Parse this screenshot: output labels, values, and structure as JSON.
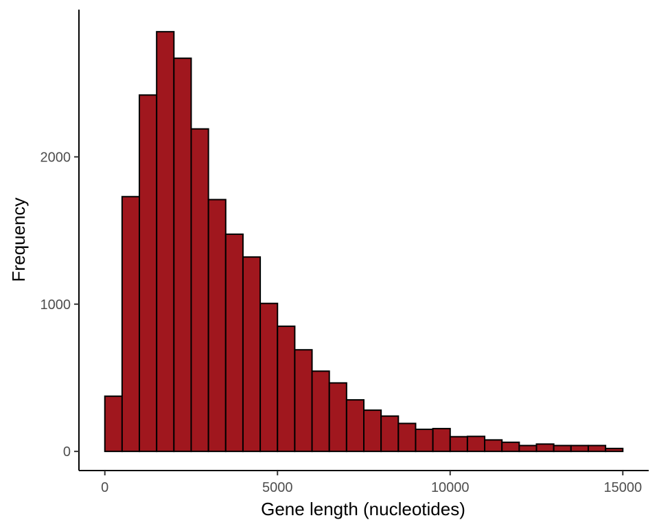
{
  "chart_data": {
    "type": "bar",
    "title": "",
    "xlabel": "Gene length (nucleotides)",
    "ylabel": "Frequency",
    "bin_width": 500,
    "bin_starts": [
      0,
      500,
      1000,
      1500,
      2000,
      2500,
      3000,
      3500,
      4000,
      4500,
      5000,
      5500,
      6000,
      6500,
      7000,
      7500,
      8000,
      8500,
      9000,
      9500,
      10000,
      10500,
      11000,
      11500,
      12000,
      12500,
      13000,
      13500,
      14000,
      14500
    ],
    "values": [
      375,
      1730,
      2420,
      2850,
      2670,
      2190,
      1710,
      1475,
      1320,
      1005,
      850,
      690,
      545,
      465,
      350,
      280,
      240,
      190,
      150,
      155,
      100,
      102,
      78,
      62,
      40,
      50,
      40,
      40,
      40,
      20
    ],
    "xlim": [
      -750,
      15750
    ],
    "ylim": [
      -130,
      3000
    ],
    "x_ticks": [
      0,
      5000,
      10000,
      15000
    ],
    "x_tick_labels": [
      "0",
      "5000",
      "10000",
      "15000"
    ],
    "y_ticks": [
      0,
      1000,
      2000
    ],
    "y_tick_labels": [
      "0",
      "1000",
      "2000"
    ],
    "bar_color": "#A0171E",
    "bar_edge_color": "#000000",
    "grid": false
  }
}
